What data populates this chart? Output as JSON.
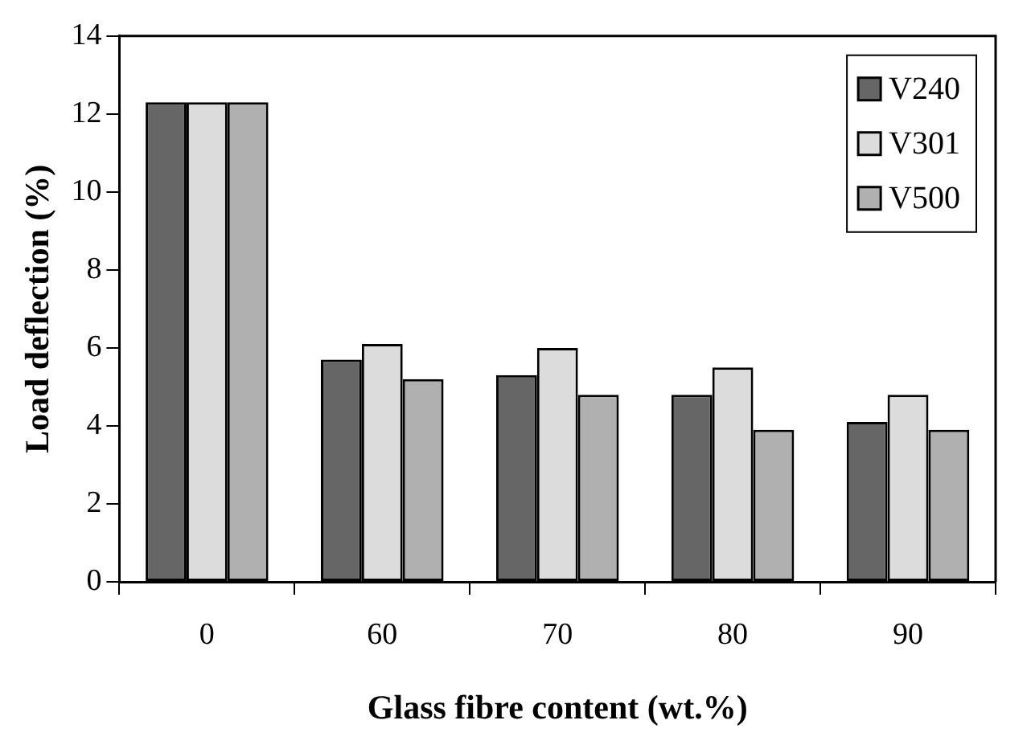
{
  "chart_data": {
    "type": "bar",
    "xlabel": "Glass fibre content (wt.%)",
    "ylabel": "Load deflection (%)",
    "categories": [
      "0",
      "60",
      "70",
      "80",
      "90"
    ],
    "series": [
      {
        "name": "V240",
        "color": "#666666",
        "values": [
          12.3,
          5.7,
          5.3,
          4.8,
          4.1
        ]
      },
      {
        "name": "V301",
        "color": "#dcdcdc",
        "values": [
          12.3,
          6.1,
          6.0,
          5.5,
          4.8
        ]
      },
      {
        "name": "V500",
        "color": "#b0b0b0",
        "values": [
          12.3,
          5.2,
          4.8,
          3.9,
          3.9
        ]
      }
    ],
    "ylim": [
      0,
      14
    ],
    "yticks": [
      0,
      2,
      4,
      6,
      8,
      10,
      12,
      14
    ],
    "grid": false,
    "legend": "top right"
  }
}
